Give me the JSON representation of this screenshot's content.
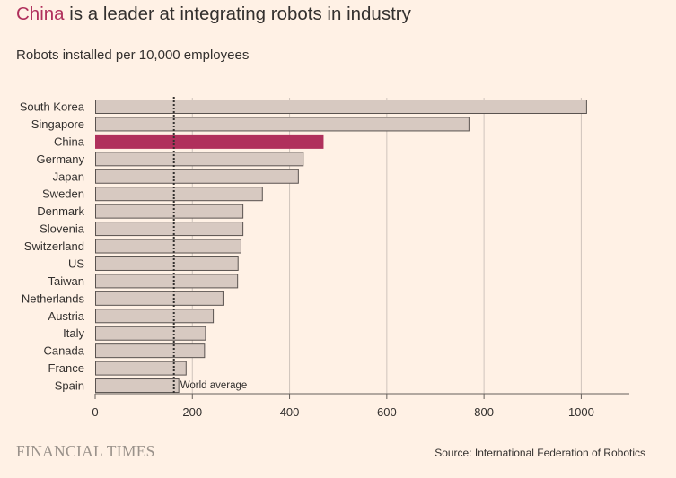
{
  "title": {
    "highlight": "China",
    "rest": " is a leader at integrating robots in industry"
  },
  "subtitle": "Robots installed per 10,000 employees",
  "footer": {
    "logo": "FINANCIAL TIMES",
    "source": "Source: International Federation of Robotics"
  },
  "colors": {
    "background": "#fff1e5",
    "bar": "#d7c9c1",
    "bar_border": "#5a5350",
    "highlight": "#b0305c",
    "grid": "#cfc4bc",
    "axis": "#66605c"
  },
  "chart_data": {
    "type": "bar",
    "orientation": "horizontal",
    "title": "China is a leader at integrating robots in industry",
    "subtitle": "Robots installed per 10,000 employees",
    "categories": [
      "South Korea",
      "Singapore",
      "China",
      "Germany",
      "Japan",
      "Sweden",
      "Denmark",
      "Slovenia",
      "Switzerland",
      "US",
      "Taiwan",
      "Netherlands",
      "Austria",
      "Italy",
      "Canada",
      "France",
      "Spain"
    ],
    "values": [
      1012,
      770,
      470,
      429,
      419,
      345,
      305,
      305,
      301,
      295,
      294,
      264,
      244,
      228,
      226,
      188,
      173
    ],
    "highlight": "China",
    "reference_line": {
      "value": 162,
      "label": "World average"
    },
    "xlim": [
      0,
      1100
    ],
    "xticks": [
      0,
      200,
      400,
      600,
      800,
      1000
    ],
    "xtick_labels": [
      "0",
      "200",
      "400",
      "600",
      "800",
      "1000"
    ],
    "xlabel": "",
    "ylabel": "",
    "grid": true,
    "source": "Source: International Federation of Robotics"
  }
}
